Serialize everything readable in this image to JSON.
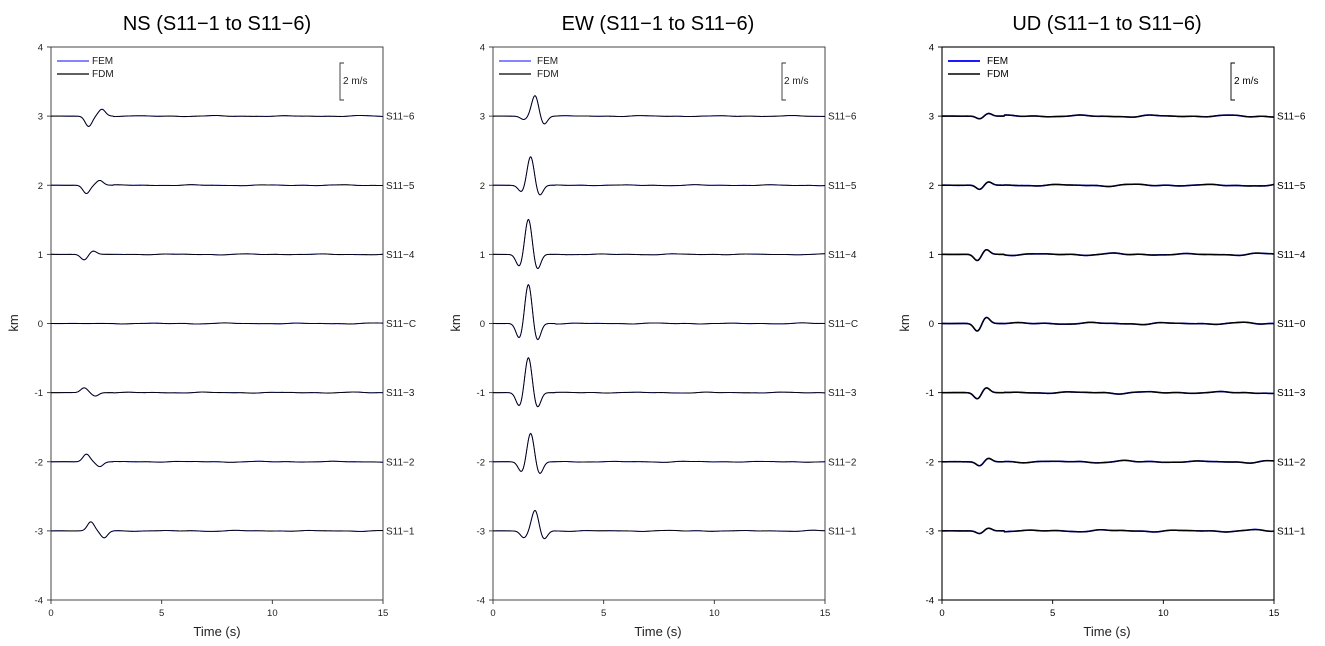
{
  "chart_data": [
    {
      "type": "line",
      "title": "NS (S11−1 to S11−6)",
      "xlabel": "Time (s)",
      "ylabel": "km",
      "xlim": [
        0,
        15
      ],
      "ylim": [
        -4,
        4
      ],
      "x_ticks": [
        "0",
        "5",
        "10",
        "15"
      ],
      "y_ticks": [
        "-4",
        "-3",
        "-2",
        "-1",
        "0",
        "1",
        "2",
        "3",
        "4"
      ],
      "scale_bar": "2 m/s",
      "legend": [
        {
          "name": "FEM",
          "color": "#3b3bff"
        },
        {
          "name": "FDM",
          "color": "#000000"
        }
      ],
      "legend_position": "top-left",
      "stations": [
        {
          "label": "S11−6",
          "offset": 3,
          "peaks": [
            [
              1.7,
              -0.15
            ],
            [
              2.3,
              0.1
            ]
          ]
        },
        {
          "label": "S11−5",
          "offset": 2,
          "peaks": [
            [
              1.6,
              -0.12
            ],
            [
              2.2,
              0.07
            ]
          ]
        },
        {
          "label": "S11−4",
          "offset": 1,
          "peaks": [
            [
              1.5,
              -0.08
            ],
            [
              1.9,
              0.05
            ]
          ]
        },
        {
          "label": "S11−C",
          "offset": 0,
          "peaks": []
        },
        {
          "label": "S11−3",
          "offset": -1,
          "peaks": [
            [
              1.5,
              0.07
            ],
            [
              2.0,
              -0.05
            ]
          ]
        },
        {
          "label": "S11−2",
          "offset": -2,
          "peaks": [
            [
              1.6,
              0.11
            ],
            [
              2.2,
              -0.07
            ]
          ]
        },
        {
          "label": "S11−1",
          "offset": -3,
          "peaks": [
            [
              1.8,
              0.13
            ],
            [
              2.4,
              -0.1
            ]
          ]
        }
      ]
    },
    {
      "type": "line",
      "title": "EW (S11−1 to S11−6)",
      "xlabel": "Time (s)",
      "ylabel": "km",
      "xlim": [
        0,
        15
      ],
      "ylim": [
        -4,
        4
      ],
      "x_ticks": [
        "0",
        "5",
        "10",
        "15"
      ],
      "y_ticks": [
        "-4",
        "-3",
        "-2",
        "-1",
        "0",
        "1",
        "2",
        "3",
        "4"
      ],
      "scale_bar": "2 m/s",
      "legend": [
        {
          "name": "FEM",
          "color": "#3b3bff"
        },
        {
          "name": "FDM",
          "color": "#000000"
        }
      ],
      "legend_position": "top-left",
      "stations": [
        {
          "label": "S11−6",
          "offset": 3,
          "peaks": [
            [
              1.4,
              -0.05
            ],
            [
              1.9,
              0.3
            ],
            [
              2.3,
              -0.12
            ]
          ]
        },
        {
          "label": "S11−5",
          "offset": 2,
          "peaks": [
            [
              1.3,
              -0.1
            ],
            [
              1.7,
              0.42
            ],
            [
              2.1,
              -0.15
            ]
          ]
        },
        {
          "label": "S11−4",
          "offset": 1,
          "peaks": [
            [
              1.2,
              -0.18
            ],
            [
              1.6,
              0.52
            ],
            [
              2.0,
              -0.22
            ]
          ]
        },
        {
          "label": "S11−C",
          "offset": 0,
          "peaks": [
            [
              1.2,
              -0.22
            ],
            [
              1.6,
              0.58
            ],
            [
              2.0,
              -0.25
            ]
          ]
        },
        {
          "label": "S11−3",
          "offset": -1,
          "peaks": [
            [
              1.2,
              -0.2
            ],
            [
              1.6,
              0.52
            ],
            [
              2.0,
              -0.22
            ]
          ]
        },
        {
          "label": "S11−2",
          "offset": -2,
          "peaks": [
            [
              1.3,
              -0.15
            ],
            [
              1.7,
              0.42
            ],
            [
              2.1,
              -0.18
            ]
          ]
        },
        {
          "label": "S11−1",
          "offset": -3,
          "peaks": [
            [
              1.4,
              -0.1
            ],
            [
              1.9,
              0.3
            ],
            [
              2.3,
              -0.12
            ]
          ]
        }
      ]
    },
    {
      "type": "line",
      "title": "UD (S11−1 to S11−6)",
      "xlabel": "Time (s)",
      "ylabel": "km",
      "xlim": [
        0,
        15
      ],
      "ylim": [
        -4,
        4
      ],
      "x_ticks": [
        "0",
        "5",
        "10",
        "15"
      ],
      "y_ticks": [
        "-4",
        "-3",
        "-2",
        "-1",
        "0",
        "1",
        "2",
        "3",
        "4"
      ],
      "scale_bar": "2 m/s",
      "legend": [
        {
          "name": "FEM",
          "color": "#1a1aff"
        },
        {
          "name": "FDM",
          "color": "#000000"
        }
      ],
      "legend_position": "top-left",
      "stations": [
        {
          "label": "S11−6",
          "offset": 3,
          "peaks": [
            [
              1.7,
              -0.04
            ],
            [
              2.1,
              0.04
            ]
          ]
        },
        {
          "label": "S11−5",
          "offset": 2,
          "peaks": [
            [
              1.7,
              -0.06
            ],
            [
              2.1,
              0.05
            ]
          ]
        },
        {
          "label": "S11−4",
          "offset": 1,
          "peaks": [
            [
              1.6,
              -0.09
            ],
            [
              2.0,
              0.07
            ]
          ]
        },
        {
          "label": "S11−0",
          "offset": 0,
          "peaks": [
            [
              1.6,
              -0.11
            ],
            [
              2.0,
              0.09
            ]
          ]
        },
        {
          "label": "S11−3",
          "offset": -1,
          "peaks": [
            [
              1.6,
              -0.09
            ],
            [
              2.0,
              0.07
            ]
          ]
        },
        {
          "label": "S11−2",
          "offset": -2,
          "peaks": [
            [
              1.7,
              -0.06
            ],
            [
              2.1,
              0.05
            ]
          ]
        },
        {
          "label": "S11−1",
          "offset": -3,
          "peaks": [
            [
              1.7,
              -0.04
            ],
            [
              2.1,
              0.04
            ]
          ]
        }
      ]
    }
  ]
}
